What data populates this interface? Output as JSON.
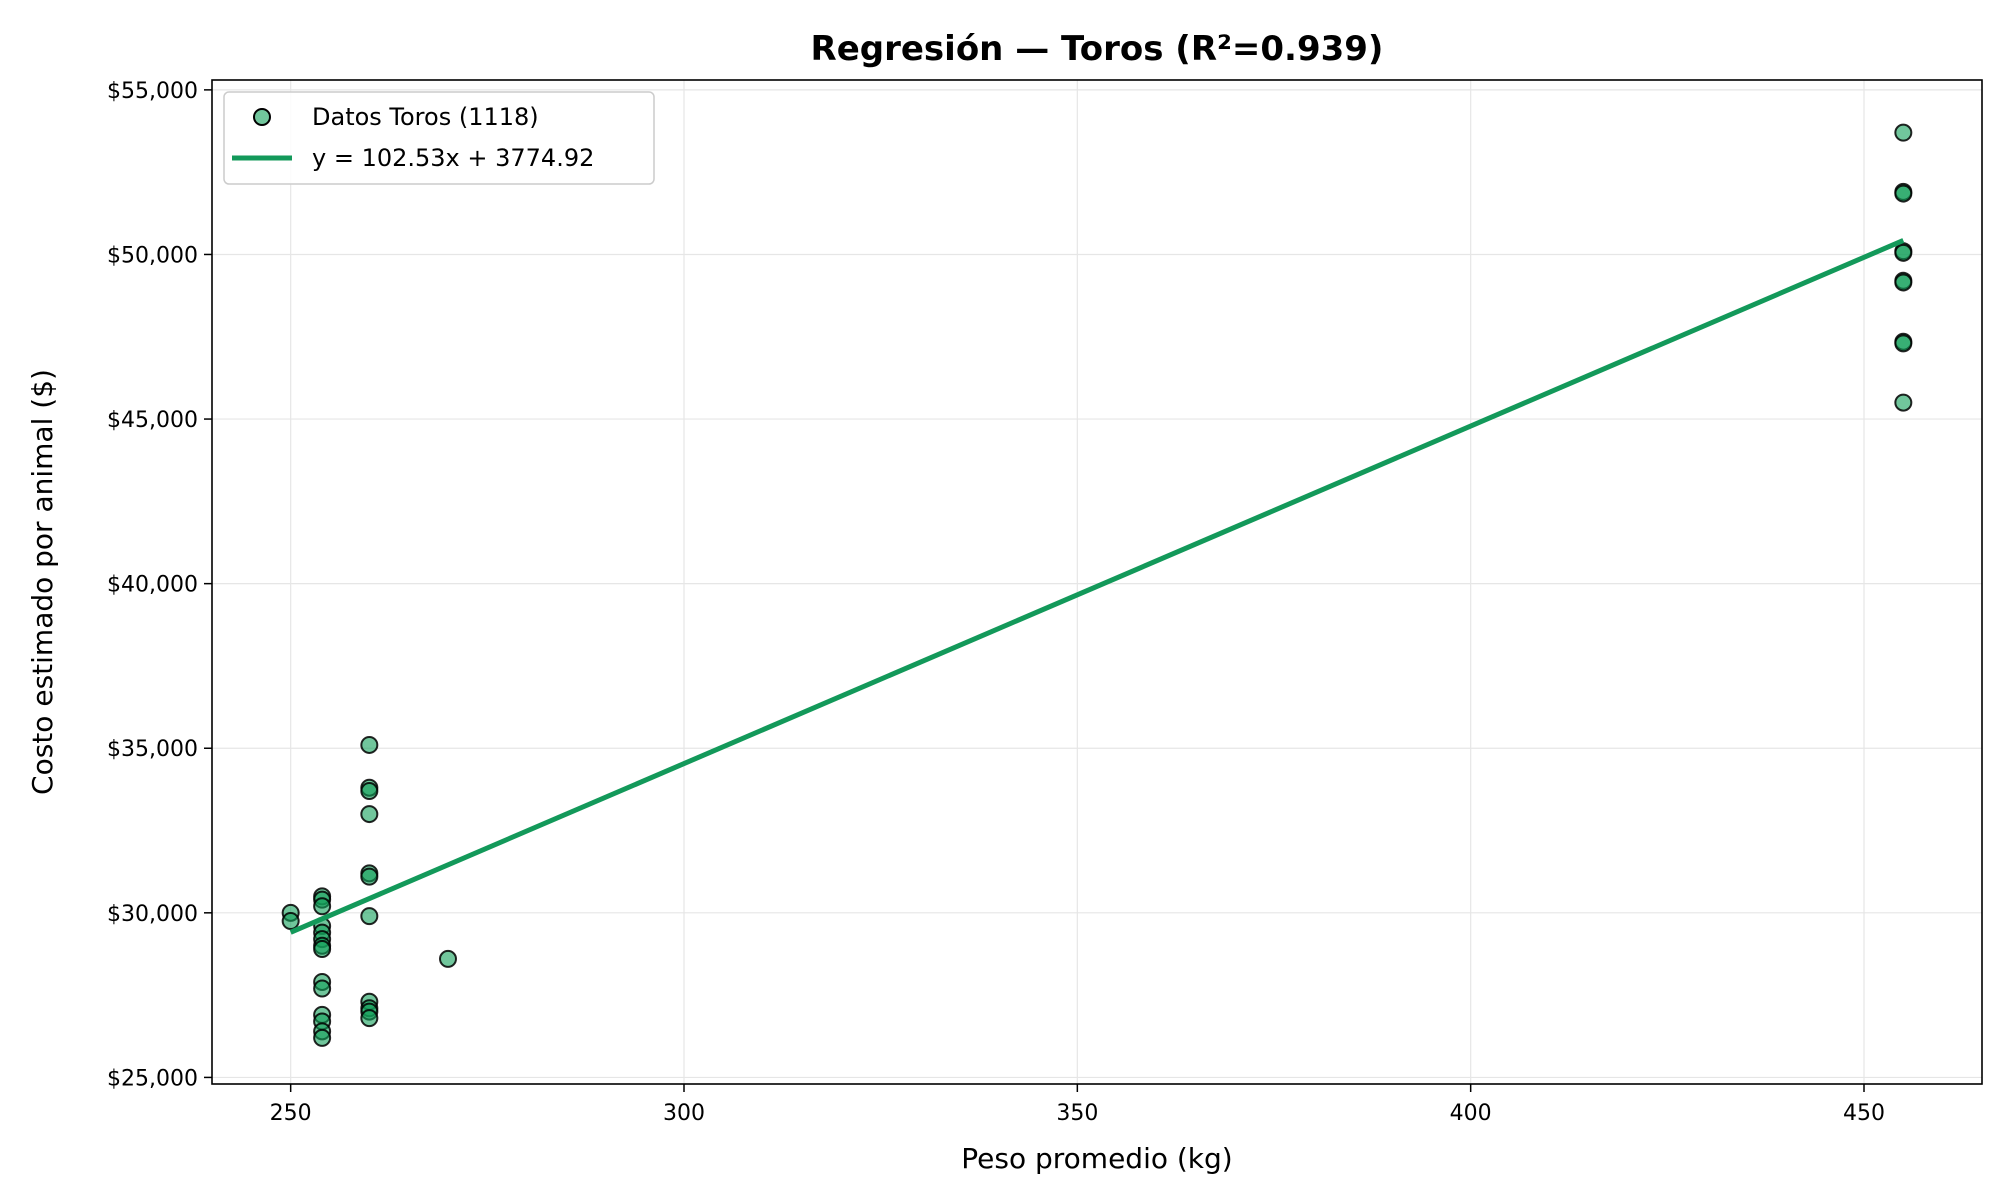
{
  "chart_data": {
    "type": "scatter",
    "title": "Regresión — Toros (R²=0.939)",
    "xlabel": "Peso promedio (kg)",
    "ylabel": "Costo estimado por animal ($)",
    "xlim": [
      240,
      465
    ],
    "ylim": [
      24800,
      55300
    ],
    "x_ticks": [
      250,
      300,
      350,
      400,
      450
    ],
    "y_ticks": [
      25000,
      30000,
      35000,
      40000,
      45000,
      50000,
      55000
    ],
    "y_tick_labels": [
      "$25,000",
      "$30,000",
      "$35,000",
      "$40,000",
      "$45,000",
      "$50,000",
      "$55,000"
    ],
    "grid": true,
    "legend_position": "top-left",
    "colors": {
      "points": "#13a05a",
      "point_edge": "#000000",
      "line": "#13995a"
    },
    "series": [
      {
        "kind": "scatter",
        "name": "Datos Toros (1118)",
        "points": [
          {
            "x": 250,
            "y": 30000
          },
          {
            "x": 250,
            "y": 29750
          },
          {
            "x": 254,
            "y": 30500
          },
          {
            "x": 254,
            "y": 30400
          },
          {
            "x": 254,
            "y": 30200
          },
          {
            "x": 254,
            "y": 29600
          },
          {
            "x": 254,
            "y": 29400
          },
          {
            "x": 254,
            "y": 29200
          },
          {
            "x": 254,
            "y": 29000
          },
          {
            "x": 254,
            "y": 28900
          },
          {
            "x": 254,
            "y": 27900
          },
          {
            "x": 254,
            "y": 27700
          },
          {
            "x": 254,
            "y": 26900
          },
          {
            "x": 254,
            "y": 26700
          },
          {
            "x": 254,
            "y": 26400
          },
          {
            "x": 254,
            "y": 26200
          },
          {
            "x": 260,
            "y": 35100
          },
          {
            "x": 260,
            "y": 33800
          },
          {
            "x": 260,
            "y": 33700
          },
          {
            "x": 260,
            "y": 33000
          },
          {
            "x": 260,
            "y": 31200
          },
          {
            "x": 260,
            "y": 31100
          },
          {
            "x": 260,
            "y": 29900
          },
          {
            "x": 260,
            "y": 27300
          },
          {
            "x": 260,
            "y": 27100
          },
          {
            "x": 260,
            "y": 27000
          },
          {
            "x": 260,
            "y": 26800
          },
          {
            "x": 270,
            "y": 28600
          },
          {
            "x": 455,
            "y": 53700
          },
          {
            "x": 455,
            "y": 51900
          },
          {
            "x": 455,
            "y": 51850
          },
          {
            "x": 455,
            "y": 50100
          },
          {
            "x": 455,
            "y": 50050
          },
          {
            "x": 455,
            "y": 49200
          },
          {
            "x": 455,
            "y": 49150
          },
          {
            "x": 455,
            "y": 47350
          },
          {
            "x": 455,
            "y": 47300
          },
          {
            "x": 455,
            "y": 45500
          }
        ]
      },
      {
        "kind": "line",
        "name": "y = 102.53x + 3774.92",
        "slope": 102.53,
        "intercept": 3774.92,
        "x_range": [
          250,
          455
        ]
      }
    ]
  }
}
